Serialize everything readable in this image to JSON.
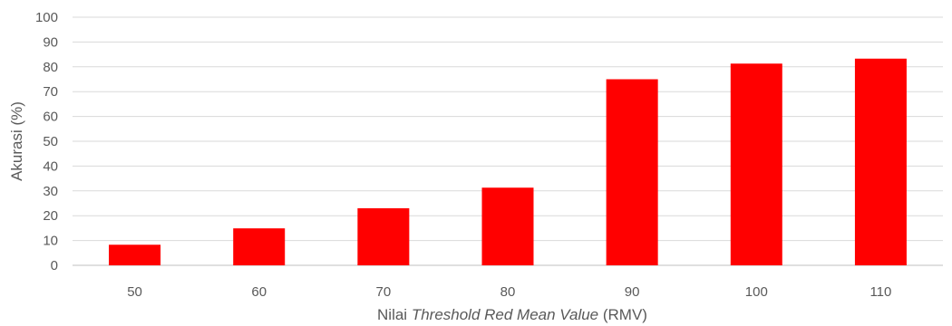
{
  "chart_data": {
    "type": "bar",
    "categories": [
      "50",
      "60",
      "70",
      "80",
      "90",
      "100",
      "110"
    ],
    "values": [
      8.3,
      14.9,
      23,
      31.3,
      75,
      81.3,
      83.3
    ],
    "xlabel": {
      "prefix": "Nilai ",
      "italic": "Threshold Red Mean Value",
      "suffix": " (RMV)"
    },
    "ylabel": "Akurasi (%)",
    "ylim": [
      0,
      100
    ],
    "yticks": [
      "0",
      "10",
      "20",
      "30",
      "40",
      "50",
      "60",
      "70",
      "80",
      "90",
      "100"
    ],
    "grid": true,
    "bar_color": "#ff0000"
  }
}
